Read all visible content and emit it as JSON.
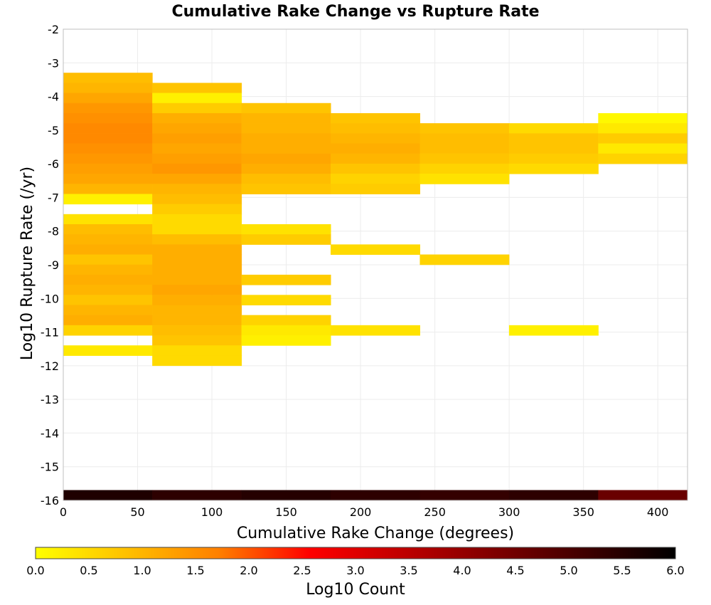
{
  "chart_data": {
    "type": "heatmap",
    "title": "Cumulative Rake Change vs Rupture Rate",
    "xlabel": "Cumulative Rake Change (degrees)",
    "ylabel": "Log10 Rupture Rate (/yr)",
    "xlim": [
      0,
      420
    ],
    "ylim": [
      -16,
      -2
    ],
    "x_ticks": [
      "0",
      "50",
      "100",
      "150",
      "200",
      "250",
      "300",
      "350",
      "400"
    ],
    "y_ticks": [
      "-2",
      "-3",
      "-4",
      "-5",
      "-6",
      "-7",
      "-8",
      "-9",
      "-10",
      "-11",
      "-12",
      "-13",
      "-14",
      "-15",
      "-16"
    ],
    "grid": true,
    "colorbar": {
      "label": "Log10 Count",
      "range": [
        0,
        6
      ],
      "ticks": [
        "0.0",
        "0.5",
        "1.0",
        "1.5",
        "2.0",
        "2.5",
        "3.0",
        "3.5",
        "4.0",
        "4.5",
        "5.0",
        "5.5",
        "6.0"
      ],
      "stops": [
        "#ffff00",
        "#ffc000",
        "#ff8000",
        "#ff0000",
        "#c00000",
        "#800000",
        "#400000",
        "#000000"
      ]
    },
    "bin_width_x": 60,
    "bin_height_y": 0.3,
    "columns": [
      {
        "x": 0,
        "bins": [
          {
            "y": -3.6,
            "v": 0.9
          },
          {
            "y": -3.9,
            "v": 1.0
          },
          {
            "y": -4.2,
            "v": 1.2
          },
          {
            "y": -4.5,
            "v": 1.4
          },
          {
            "y": -4.8,
            "v": 1.5
          },
          {
            "y": -5.1,
            "v": 1.6
          },
          {
            "y": -5.4,
            "v": 1.6
          },
          {
            "y": -5.7,
            "v": 1.5
          },
          {
            "y": -6.0,
            "v": 1.4
          },
          {
            "y": -6.3,
            "v": 1.3
          },
          {
            "y": -6.6,
            "v": 1.2
          },
          {
            "y": -6.9,
            "v": 1.0
          },
          {
            "y": -7.2,
            "v": 0.2
          },
          {
            "y": -7.8,
            "v": 0.4
          },
          {
            "y": -8.1,
            "v": 0.9
          },
          {
            "y": -8.4,
            "v": 1.0
          },
          {
            "y": -8.7,
            "v": 1.1
          },
          {
            "y": -9.0,
            "v": 0.8
          },
          {
            "y": -9.3,
            "v": 1.0
          },
          {
            "y": -9.6,
            "v": 1.1
          },
          {
            "y": -9.9,
            "v": 1.0
          },
          {
            "y": -10.2,
            "v": 0.8
          },
          {
            "y": -10.5,
            "v": 1.0
          },
          {
            "y": -10.8,
            "v": 1.1
          },
          {
            "y": -11.1,
            "v": 0.6
          },
          {
            "y": -11.7,
            "v": 0.3
          },
          {
            "y": -16.0,
            "v": 5.6
          }
        ]
      },
      {
        "x": 60,
        "bins": [
          {
            "y": -3.9,
            "v": 0.8
          },
          {
            "y": -4.2,
            "v": 0.2
          },
          {
            "y": -4.5,
            "v": 0.7
          },
          {
            "y": -4.8,
            "v": 1.1
          },
          {
            "y": -5.1,
            "v": 1.2
          },
          {
            "y": -5.4,
            "v": 1.3
          },
          {
            "y": -5.7,
            "v": 1.2
          },
          {
            "y": -6.0,
            "v": 1.3
          },
          {
            "y": -6.3,
            "v": 1.4
          },
          {
            "y": -6.6,
            "v": 1.2
          },
          {
            "y": -6.9,
            "v": 1.0
          },
          {
            "y": -7.2,
            "v": 0.9
          },
          {
            "y": -7.5,
            "v": 0.7
          },
          {
            "y": -7.8,
            "v": 0.5
          },
          {
            "y": -8.1,
            "v": 0.5
          },
          {
            "y": -8.4,
            "v": 0.9
          },
          {
            "y": -8.7,
            "v": 1.1
          },
          {
            "y": -9.0,
            "v": 1.1
          },
          {
            "y": -9.3,
            "v": 1.1
          },
          {
            "y": -9.6,
            "v": 1.1
          },
          {
            "y": -9.9,
            "v": 1.2
          },
          {
            "y": -10.2,
            "v": 1.1
          },
          {
            "y": -10.5,
            "v": 1.0
          },
          {
            "y": -10.8,
            "v": 1.0
          },
          {
            "y": -11.1,
            "v": 0.9
          },
          {
            "y": -11.4,
            "v": 0.8
          },
          {
            "y": -11.7,
            "v": 0.5
          },
          {
            "y": -12.0,
            "v": 0.5
          },
          {
            "y": -16.0,
            "v": 5.4
          }
        ]
      },
      {
        "x": 120,
        "bins": [
          {
            "y": -4.5,
            "v": 0.8
          },
          {
            "y": -4.8,
            "v": 1.0
          },
          {
            "y": -5.1,
            "v": 1.0
          },
          {
            "y": -5.4,
            "v": 1.1
          },
          {
            "y": -5.7,
            "v": 1.1
          },
          {
            "y": -6.0,
            "v": 1.2
          },
          {
            "y": -6.3,
            "v": 1.1
          },
          {
            "y": -6.6,
            "v": 0.9
          },
          {
            "y": -6.9,
            "v": 0.8
          },
          {
            "y": -8.1,
            "v": 0.4
          },
          {
            "y": -8.4,
            "v": 0.7
          },
          {
            "y": -9.6,
            "v": 0.7
          },
          {
            "y": -10.2,
            "v": 0.5
          },
          {
            "y": -10.8,
            "v": 0.6
          },
          {
            "y": -11.1,
            "v": 0.3
          },
          {
            "y": -11.4,
            "v": 0.2
          },
          {
            "y": -16.0,
            "v": 5.5
          }
        ]
      },
      {
        "x": 180,
        "bins": [
          {
            "y": -4.8,
            "v": 0.8
          },
          {
            "y": -5.1,
            "v": 0.9
          },
          {
            "y": -5.4,
            "v": 1.0
          },
          {
            "y": -5.7,
            "v": 1.1
          },
          {
            "y": -6.0,
            "v": 1.0
          },
          {
            "y": -6.3,
            "v": 0.8
          },
          {
            "y": -6.6,
            "v": 0.6
          },
          {
            "y": -6.9,
            "v": 0.7
          },
          {
            "y": -8.7,
            "v": 0.5
          },
          {
            "y": -11.1,
            "v": 0.4
          },
          {
            "y": -16.0,
            "v": 5.4
          }
        ]
      },
      {
        "x": 240,
        "bins": [
          {
            "y": -5.1,
            "v": 0.8
          },
          {
            "y": -5.4,
            "v": 0.9
          },
          {
            "y": -5.7,
            "v": 0.9
          },
          {
            "y": -6.0,
            "v": 0.8
          },
          {
            "y": -6.3,
            "v": 0.6
          },
          {
            "y": -6.6,
            "v": 0.4
          },
          {
            "y": -9.0,
            "v": 0.6
          },
          {
            "y": -16.0,
            "v": 5.3
          }
        ]
      },
      {
        "x": 300,
        "bins": [
          {
            "y": -5.1,
            "v": 0.5
          },
          {
            "y": -5.4,
            "v": 0.8
          },
          {
            "y": -5.7,
            "v": 0.8
          },
          {
            "y": -6.0,
            "v": 0.7
          },
          {
            "y": -6.3,
            "v": 0.5
          },
          {
            "y": -11.1,
            "v": 0.2
          },
          {
            "y": -16.0,
            "v": 5.4
          }
        ]
      },
      {
        "x": 360,
        "bins": [
          {
            "y": -4.8,
            "v": 0.1
          },
          {
            "y": -5.1,
            "v": 0.3
          },
          {
            "y": -5.4,
            "v": 0.7
          },
          {
            "y": -5.7,
            "v": 0.3
          },
          {
            "y": -6.0,
            "v": 0.6
          },
          {
            "y": -16.0,
            "v": 4.6
          }
        ]
      }
    ]
  }
}
